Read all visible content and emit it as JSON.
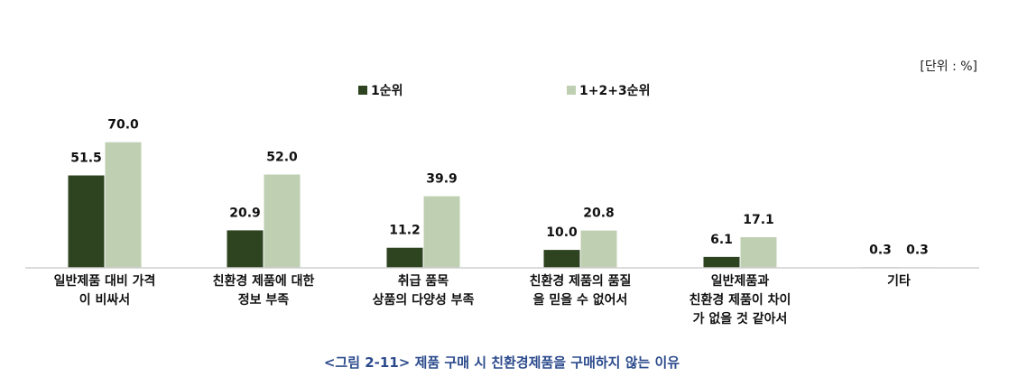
{
  "chart_data": {
    "type": "bar",
    "unit_label": "[단위 : %]",
    "caption": "<그림 2-11> 제품 구매 시 친환경제품을 구매하지 않는 이유",
    "categories": [
      [
        "일반제품 대비 가격",
        "이 비싸서"
      ],
      [
        "친환경 제품에 대한",
        "정보 부족"
      ],
      [
        "취급 품목",
        "상품의 다양성 부족"
      ],
      [
        "친환경 제품의 품질",
        "을 믿을 수 없어서"
      ],
      [
        "일반제품과",
        "친환경 제품이 차이",
        "가 없을 것 같아서"
      ],
      [
        "기타"
      ]
    ],
    "series": [
      {
        "name": "1순위",
        "color": "#2e4420",
        "values": [
          51.5,
          20.9,
          11.2,
          10.0,
          6.1,
          0.3
        ],
        "labels": [
          "51.5",
          "20.9",
          "11.2",
          "10.0",
          "6.1",
          "0.3"
        ]
      },
      {
        "name": "1+2+3순위",
        "color": "#bfcfb2",
        "values": [
          70.0,
          52.0,
          39.9,
          20.8,
          17.1,
          0.3
        ],
        "labels": [
          "70.0",
          "52.0",
          "39.9",
          "20.8",
          "17.1",
          "0.3"
        ]
      }
    ],
    "ylim": [
      0,
      100
    ],
    "grid": false,
    "legend_position": "top-center"
  }
}
